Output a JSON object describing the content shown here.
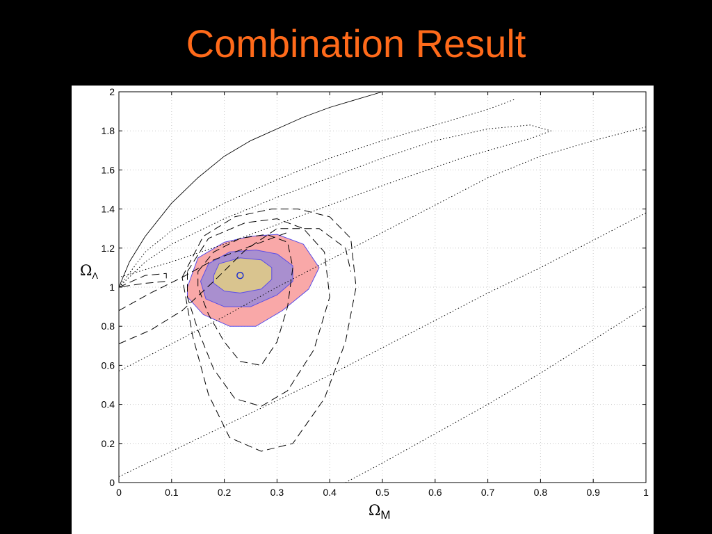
{
  "slide": {
    "title": "Combination Result"
  },
  "chart_data": {
    "type": "line",
    "title": "",
    "xlabel": "ΩM",
    "ylabel": "ΩΛ",
    "axis_labels": {
      "x_symbol": "Ω",
      "x_subscript": "M",
      "y_symbol": "Ω",
      "y_subscript": "Λ"
    },
    "xlim": [
      0,
      1
    ],
    "ylim": [
      0,
      2
    ],
    "x_ticks": [
      0,
      0.1,
      0.2,
      0.3,
      0.4,
      0.5,
      0.6,
      0.7,
      0.8,
      0.9,
      1
    ],
    "y_ticks": [
      0,
      0.2,
      0.4,
      0.6,
      0.8,
      1,
      1.2,
      1.4,
      1.6,
      1.8,
      2
    ],
    "x_tick_labels": [
      "0",
      "0.1",
      "0.2",
      "0.3",
      "0.4",
      "0.5",
      "0.6",
      "0.7",
      "0.8",
      "0.9",
      "1"
    ],
    "y_tick_labels": [
      "0",
      "0.2",
      "0.4",
      "0.6",
      "0.8",
      "1",
      "1.2",
      "1.4",
      "1.6",
      "1.8",
      "2"
    ],
    "grid": true,
    "colors": {
      "contour_1sigma_fill": "#d9c48f",
      "contour_2sigma_fill": "#a98fcf",
      "contour_3sigma_fill": "#f9a8a8",
      "contour_edge": "#5a4de8",
      "best_fit": "#2233cc",
      "line": "#000000",
      "title": "#ff6a1a"
    },
    "best_fit_point": {
      "x": 0.23,
      "y": 1.06
    },
    "series": [
      {
        "style": "solid-curve",
        "points": [
          [
            0,
            1.0
          ],
          [
            0.02,
            1.13
          ],
          [
            0.05,
            1.26
          ],
          [
            0.1,
            1.43
          ],
          [
            0.15,
            1.56
          ],
          [
            0.2,
            1.67
          ],
          [
            0.25,
            1.75
          ],
          [
            0.3,
            1.81
          ],
          [
            0.35,
            1.87
          ],
          [
            0.4,
            1.92
          ],
          [
            0.45,
            1.96
          ],
          [
            0.5,
            2.0
          ]
        ]
      },
      {
        "style": "filled-3sigma",
        "points": [
          [
            0.13,
            1.0
          ],
          [
            0.15,
            1.15
          ],
          [
            0.2,
            1.23
          ],
          [
            0.25,
            1.26
          ],
          [
            0.3,
            1.27
          ],
          [
            0.35,
            1.22
          ],
          [
            0.38,
            1.1
          ],
          [
            0.36,
            0.99
          ],
          [
            0.31,
            0.88
          ],
          [
            0.26,
            0.8
          ],
          [
            0.21,
            0.8
          ],
          [
            0.16,
            0.86
          ],
          [
            0.13,
            0.95
          ],
          [
            0.13,
            1.0
          ]
        ]
      },
      {
        "style": "filled-2sigma",
        "points": [
          [
            0.155,
            1.03
          ],
          [
            0.17,
            1.12
          ],
          [
            0.21,
            1.18
          ],
          [
            0.26,
            1.19
          ],
          [
            0.3,
            1.17
          ],
          [
            0.33,
            1.11
          ],
          [
            0.33,
            1.03
          ],
          [
            0.3,
            0.96
          ],
          [
            0.25,
            0.9
          ],
          [
            0.2,
            0.9
          ],
          [
            0.165,
            0.94
          ],
          [
            0.155,
            1.03
          ]
        ]
      },
      {
        "style": "filled-1sigma",
        "points": [
          [
            0.18,
            1.06
          ],
          [
            0.19,
            1.12
          ],
          [
            0.23,
            1.15
          ],
          [
            0.27,
            1.14
          ],
          [
            0.29,
            1.1
          ],
          [
            0.29,
            1.04
          ],
          [
            0.27,
            0.99
          ],
          [
            0.23,
            0.97
          ],
          [
            0.2,
            0.98
          ],
          [
            0.18,
            1.02
          ],
          [
            0.18,
            1.06
          ]
        ]
      },
      {
        "style": "dashed-contour",
        "points": [
          [
            0.15,
            1.08
          ],
          [
            0.18,
            1.18
          ],
          [
            0.23,
            1.25
          ],
          [
            0.28,
            1.27
          ],
          [
            0.32,
            1.23
          ],
          [
            0.33,
            1.1
          ],
          [
            0.32,
            0.9
          ],
          [
            0.3,
            0.72
          ],
          [
            0.27,
            0.6
          ],
          [
            0.23,
            0.62
          ],
          [
            0.2,
            0.72
          ],
          [
            0.17,
            0.86
          ],
          [
            0.15,
            1.0
          ],
          [
            0.15,
            1.08
          ]
        ]
      },
      {
        "style": "dashed-contour",
        "points": [
          [
            0.13,
            1.08
          ],
          [
            0.17,
            1.25
          ],
          [
            0.24,
            1.33
          ],
          [
            0.3,
            1.35
          ],
          [
            0.35,
            1.3
          ],
          [
            0.39,
            1.18
          ],
          [
            0.4,
            0.95
          ],
          [
            0.37,
            0.68
          ],
          [
            0.32,
            0.47
          ],
          [
            0.27,
            0.39
          ],
          [
            0.22,
            0.43
          ],
          [
            0.18,
            0.58
          ],
          [
            0.15,
            0.78
          ],
          [
            0.13,
            0.95
          ],
          [
            0.13,
            1.08
          ]
        ]
      },
      {
        "style": "dashed-contour",
        "points": [
          [
            0.12,
            1.05
          ],
          [
            0.16,
            1.26
          ],
          [
            0.22,
            1.36
          ],
          [
            0.29,
            1.4
          ],
          [
            0.34,
            1.4
          ],
          [
            0.4,
            1.36
          ],
          [
            0.44,
            1.25
          ],
          [
            0.45,
            1.0
          ],
          [
            0.43,
            0.72
          ],
          [
            0.39,
            0.43
          ],
          [
            0.33,
            0.2
          ],
          [
            0.27,
            0.16
          ],
          [
            0.21,
            0.23
          ],
          [
            0.17,
            0.45
          ],
          [
            0.14,
            0.75
          ],
          [
            0.12,
            1.05
          ]
        ]
      },
      {
        "style": "dashed-contour",
        "points": [
          [
            0.0,
            1.0
          ],
          [
            0.05,
            1.06
          ],
          [
            0.09,
            1.07
          ],
          [
            0.09,
            1.03
          ],
          [
            0.05,
            1.02
          ],
          [
            0.0,
            1.0
          ]
        ]
      },
      {
        "style": "dashed-contour",
        "points": [
          [
            0.0,
            0.88
          ],
          [
            0.06,
            0.97
          ],
          [
            0.12,
            1.05
          ],
          [
            0.18,
            1.14
          ],
          [
            0.26,
            1.22
          ],
          [
            0.32,
            1.28
          ]
        ]
      },
      {
        "style": "dashed-contour",
        "points": [
          [
            0.0,
            0.71
          ],
          [
            0.06,
            0.78
          ],
          [
            0.12,
            0.88
          ],
          [
            0.18,
            1.03
          ],
          [
            0.24,
            1.19
          ],
          [
            0.3,
            1.3
          ],
          [
            0.38,
            1.3
          ],
          [
            0.43,
            1.2
          ],
          [
            0.44,
            1.08
          ]
        ]
      },
      {
        "style": "dotted-contour",
        "points": [
          [
            0.0,
            1.0
          ],
          [
            0.05,
            1.18
          ],
          [
            0.1,
            1.29
          ],
          [
            0.2,
            1.43
          ],
          [
            0.3,
            1.55
          ],
          [
            0.4,
            1.66
          ],
          [
            0.5,
            1.75
          ],
          [
            0.6,
            1.83
          ],
          [
            0.7,
            1.91
          ],
          [
            0.75,
            1.96
          ]
        ]
      },
      {
        "style": "dotted-contour",
        "points": [
          [
            0.0,
            1.0
          ],
          [
            0.05,
            1.13
          ],
          [
            0.1,
            1.22
          ],
          [
            0.2,
            1.35
          ],
          [
            0.3,
            1.46
          ],
          [
            0.4,
            1.56
          ],
          [
            0.5,
            1.66
          ],
          [
            0.6,
            1.75
          ],
          [
            0.7,
            1.81
          ],
          [
            0.78,
            1.83
          ],
          [
            0.82,
            1.8
          ],
          [
            0.78,
            1.76
          ],
          [
            0.65,
            1.66
          ],
          [
            0.5,
            1.52
          ],
          [
            0.35,
            1.37
          ],
          [
            0.2,
            1.22
          ],
          [
            0.1,
            1.13
          ],
          [
            0.0,
            1.05
          ]
        ]
      },
      {
        "style": "dotted-contour",
        "points": [
          [
            0.0,
            0.57
          ],
          [
            0.1,
            0.71
          ],
          [
            0.2,
            0.85
          ],
          [
            0.3,
            1.0
          ],
          [
            0.4,
            1.14
          ],
          [
            0.5,
            1.28
          ],
          [
            0.6,
            1.42
          ],
          [
            0.7,
            1.56
          ],
          [
            0.8,
            1.67
          ],
          [
            0.9,
            1.75
          ],
          [
            1.0,
            1.82
          ]
        ]
      },
      {
        "style": "dotted-contour",
        "points": [
          [
            0.0,
            0.03
          ],
          [
            0.1,
            0.16
          ],
          [
            0.2,
            0.29
          ],
          [
            0.3,
            0.42
          ],
          [
            0.4,
            0.55
          ],
          [
            0.5,
            0.69
          ],
          [
            0.6,
            0.83
          ],
          [
            0.7,
            0.97
          ],
          [
            0.8,
            1.1
          ],
          [
            0.9,
            1.24
          ],
          [
            1.0,
            1.38
          ]
        ]
      },
      {
        "style": "dotted-contour",
        "points": [
          [
            0.43,
            0.0
          ],
          [
            0.5,
            0.1
          ],
          [
            0.6,
            0.25
          ],
          [
            0.7,
            0.4
          ],
          [
            0.8,
            0.56
          ],
          [
            0.9,
            0.73
          ],
          [
            1.0,
            0.9
          ]
        ]
      },
      {
        "style": "dotted-contour",
        "points": [
          [
            0.0,
            2.0
          ],
          [
            0.2,
            2.0
          ],
          [
            0.4,
            2.0
          ],
          [
            0.6,
            2.0
          ],
          [
            0.8,
            2.0
          ],
          [
            1.0,
            2.0
          ]
        ]
      },
      {
        "style": "solid-curve",
        "points": [
          [
            0.0,
            2.0
          ],
          [
            1.0,
            2.0
          ]
        ]
      }
    ]
  }
}
